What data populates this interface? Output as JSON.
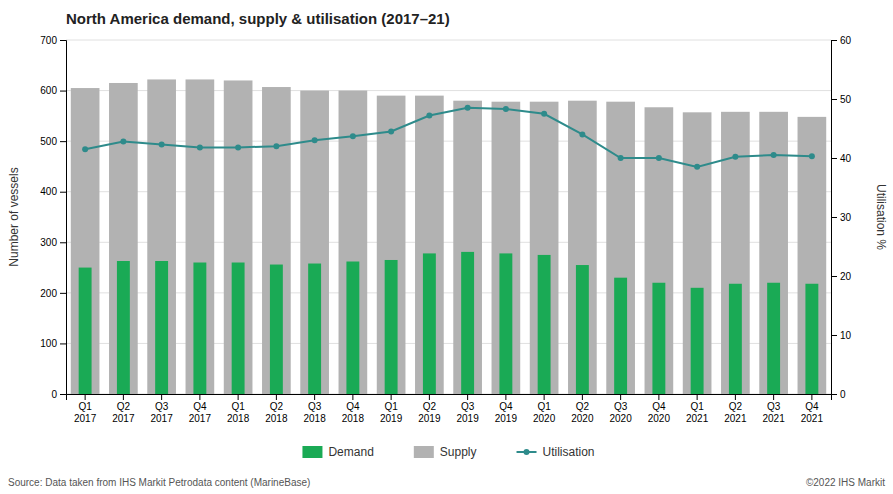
{
  "chart_data": {
    "type": "bar",
    "title": "North America demand, supply & utilisation (2017–21)",
    "ylabel": "Number of vessels",
    "y2label": "Utilisation %",
    "categories": [
      "Q1\n2017",
      "Q2\n2017",
      "Q3\n2017",
      "Q4\n2017",
      "Q1\n2018",
      "Q2\n2018",
      "Q3\n2018",
      "Q4\n2018",
      "Q1\n2019",
      "Q2\n2019",
      "Q3\n2019",
      "Q4\n2019",
      "Q1\n2020",
      "Q2\n2020",
      "Q3\n2020",
      "Q4\n2020",
      "Q1\n2021",
      "Q2\n2021",
      "Q3\n2021",
      "Q4\n2021"
    ],
    "series": [
      {
        "name": "Demand",
        "type": "bar",
        "color": "#1aaa55",
        "values": [
          250,
          263,
          263,
          260,
          260,
          256,
          258,
          262,
          265,
          278,
          281,
          278,
          275,
          255,
          230,
          220,
          210,
          218,
          220,
          218
        ]
      },
      {
        "name": "Supply",
        "type": "bar",
        "color": "#b2b2b2",
        "values": [
          605,
          615,
          622,
          622,
          620,
          607,
          600,
          600,
          590,
          590,
          580,
          578,
          578,
          580,
          578,
          567,
          557,
          558,
          558,
          548
        ]
      },
      {
        "name": "Utilisation",
        "type": "line",
        "axis": "y2",
        "color": "#2e8b8b",
        "marker": "circle",
        "values": [
          41.5,
          42.8,
          42.3,
          41.8,
          41.8,
          42.0,
          43.0,
          43.7,
          44.5,
          47.2,
          48.5,
          48.3,
          47.5,
          44.0,
          40.0,
          40.0,
          38.5,
          40.2,
          40.5,
          40.3
        ]
      }
    ],
    "ylim": [
      0,
      700
    ],
    "yticks": [
      0,
      100,
      200,
      300,
      400,
      500,
      600,
      700
    ],
    "y2lim": [
      0,
      60
    ],
    "y2ticks": [
      0,
      10,
      20,
      30,
      40,
      50,
      60
    ],
    "grid": true,
    "annotations": [
      "Source: Data taken from IHS Markit Petrodata content (MarineBase)",
      "©2022 IHS Markit"
    ]
  }
}
